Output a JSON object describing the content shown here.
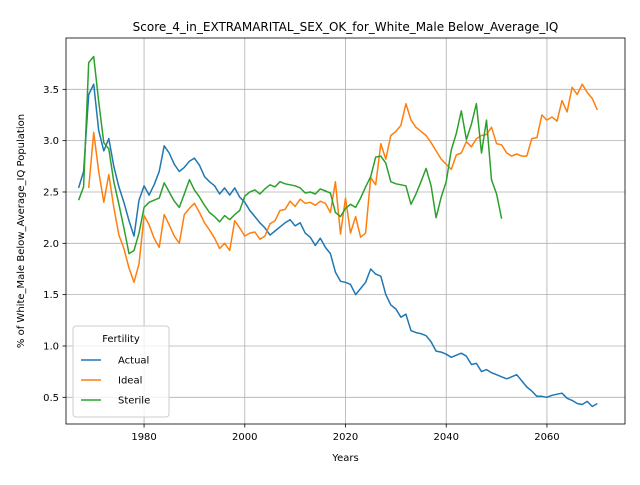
{
  "chart_data": {
    "type": "line",
    "title": "Score_4_in_EXTRAMARITAL_SEX_OK_for_White_Male Below_Average_IQ",
    "xlabel": "Years",
    "ylabel": "% of White_Male Below_Average_IQ Population",
    "xlim": [
      1964.5,
      2075.5
    ],
    "ylim": [
      0.24,
      4.0
    ],
    "xticks": [
      1980,
      2000,
      2020,
      2040,
      2060
    ],
    "yticks": [
      0.5,
      1.0,
      1.5,
      2.0,
      2.5,
      3.0,
      3.5
    ],
    "grid": true,
    "legend": {
      "title": "Fertility",
      "placement": "lower-left"
    },
    "series": [
      {
        "name": "Actual",
        "color": "#1f77b4",
        "x": [
          1967,
          1968,
          1969,
          1970,
          1971,
          1972,
          1973,
          1974,
          1975,
          1976,
          1977,
          1978,
          1979,
          1980,
          1981,
          1982,
          1983,
          1984,
          1985,
          1986,
          1987,
          1988,
          1989,
          1990,
          1991,
          1992,
          1993,
          1994,
          1995,
          1996,
          1997,
          1998,
          1999,
          2000,
          2001,
          2002,
          2003,
          2004,
          2005,
          2006,
          2007,
          2008,
          2009,
          2010,
          2011,
          2012,
          2013,
          2014,
          2015,
          2016,
          2017,
          2018,
          2019,
          2020,
          2021,
          2022,
          2023,
          2024,
          2025,
          2026,
          2027,
          2028,
          2029,
          2030,
          2031,
          2032,
          2033,
          2034,
          2035,
          2036,
          2037,
          2038,
          2039,
          2040,
          2041,
          2042,
          2043,
          2044,
          2045,
          2046,
          2047,
          2048,
          2049,
          2050,
          2051,
          2052,
          2053,
          2054,
          2055,
          2056,
          2057,
          2058,
          2059,
          2060,
          2061,
          2062,
          2063,
          2064,
          2065,
          2066,
          2067,
          2068,
          2069,
          2070
        ],
        "y": [
          2.54,
          2.7,
          3.45,
          3.55,
          3.1,
          2.9,
          3.02,
          2.75,
          2.55,
          2.4,
          2.22,
          2.07,
          2.42,
          2.56,
          2.47,
          2.57,
          2.7,
          2.95,
          2.88,
          2.77,
          2.7,
          2.74,
          2.8,
          2.83,
          2.76,
          2.65,
          2.6,
          2.56,
          2.48,
          2.54,
          2.47,
          2.54,
          2.45,
          2.4,
          2.32,
          2.26,
          2.2,
          2.15,
          2.08,
          2.12,
          2.16,
          2.2,
          2.23,
          2.17,
          2.2,
          2.1,
          2.06,
          1.98,
          2.05,
          1.96,
          1.9,
          1.72,
          1.63,
          1.62,
          1.6,
          1.5,
          1.56,
          1.62,
          1.75,
          1.7,
          1.68,
          1.5,
          1.4,
          1.36,
          1.28,
          1.31,
          1.15,
          1.13,
          1.12,
          1.1,
          1.04,
          0.95,
          0.94,
          0.92,
          0.89,
          0.91,
          0.93,
          0.9,
          0.82,
          0.83,
          0.75,
          0.77,
          0.74,
          0.72,
          0.7,
          0.68,
          0.7,
          0.72,
          0.66,
          0.6,
          0.56,
          0.51,
          0.51,
          0.5,
          0.52,
          0.53,
          0.54,
          0.49,
          0.47,
          0.44,
          0.43,
          0.46,
          0.41,
          0.44
        ]
      },
      {
        "name": "Ideal",
        "color": "#ff7f0e",
        "x": [
          1969,
          1970,
          1971,
          1972,
          1973,
          1974,
          1975,
          1976,
          1977,
          1978,
          1979,
          1980,
          1981,
          1982,
          1983,
          1984,
          1985,
          1986,
          1987,
          1988,
          1989,
          1990,
          1991,
          1992,
          1993,
          1994,
          1995,
          1996,
          1997,
          1998,
          1999,
          2000,
          2001,
          2002,
          2003,
          2004,
          2005,
          2006,
          2007,
          2008,
          2009,
          2010,
          2011,
          2012,
          2013,
          2014,
          2015,
          2016,
          2017,
          2018,
          2019,
          2020,
          2021,
          2022,
          2023,
          2024,
          2025,
          2026,
          2027,
          2028,
          2029,
          2030,
          2031,
          2032,
          2033,
          2034,
          2035,
          2036,
          2037,
          2038,
          2039,
          2040,
          2041,
          2042,
          2043,
          2044,
          2045,
          2046,
          2047,
          2048,
          2049,
          2050,
          2051,
          2052,
          2053,
          2054,
          2055,
          2056,
          2057,
          2058,
          2059,
          2060,
          2061,
          2062,
          2063,
          2064,
          2065,
          2066,
          2067,
          2068,
          2069,
          2070
        ],
        "y": [
          2.54,
          3.08,
          2.7,
          2.4,
          2.67,
          2.35,
          2.08,
          1.95,
          1.76,
          1.62,
          1.8,
          2.27,
          2.18,
          2.05,
          1.96,
          2.28,
          2.18,
          2.07,
          2.0,
          2.28,
          2.34,
          2.39,
          2.3,
          2.2,
          2.13,
          2.05,
          1.95,
          2.0,
          1.93,
          2.22,
          2.15,
          2.07,
          2.1,
          2.11,
          2.04,
          2.07,
          2.19,
          2.22,
          2.32,
          2.33,
          2.41,
          2.36,
          2.43,
          2.39,
          2.4,
          2.37,
          2.41,
          2.39,
          2.3,
          2.6,
          2.09,
          2.44,
          2.1,
          2.26,
          2.06,
          2.1,
          2.64,
          2.57,
          2.97,
          2.82,
          3.05,
          3.09,
          3.15,
          3.36,
          3.2,
          3.13,
          3.09,
          3.05,
          2.98,
          2.9,
          2.82,
          2.77,
          2.72,
          2.86,
          2.88,
          2.99,
          2.94,
          3.02,
          3.05,
          3.06,
          3.13,
          2.97,
          2.96,
          2.88,
          2.85,
          2.87,
          2.85,
          2.85,
          3.02,
          3.03,
          3.25,
          3.2,
          3.23,
          3.19,
          3.39,
          3.28,
          3.52,
          3.45,
          3.55,
          3.47,
          3.41,
          3.3
        ]
      },
      {
        "name": "Sterile",
        "color": "#2ca02c",
        "x": [
          1967,
          1968,
          1969,
          1970,
          1971,
          1972,
          1973,
          1974,
          1975,
          1976,
          1977,
          1978,
          1979,
          1980,
          1981,
          1982,
          1983,
          1984,
          1985,
          1986,
          1987,
          1988,
          1989,
          1990,
          1991,
          1992,
          1993,
          1994,
          1995,
          1996,
          1997,
          1998,
          1999,
          2000,
          2001,
          2002,
          2003,
          2004,
          2005,
          2006,
          2007,
          2008,
          2009,
          2010,
          2011,
          2012,
          2013,
          2014,
          2015,
          2016,
          2017,
          2018,
          2019,
          2020,
          2021,
          2022,
          2023,
          2024,
          2025,
          2026,
          2027,
          2028,
          2029,
          2030,
          2031,
          2032,
          2033,
          2034,
          2035,
          2036,
          2037,
          2038,
          2039,
          2040,
          2041,
          2042,
          2043,
          2044,
          2045,
          2046,
          2047,
          2048,
          2049,
          2050,
          2051
        ],
        "y": [
          2.42,
          2.55,
          3.76,
          3.82,
          3.38,
          2.98,
          2.92,
          2.6,
          2.38,
          2.15,
          1.9,
          1.93,
          2.1,
          2.35,
          2.4,
          2.42,
          2.44,
          2.59,
          2.5,
          2.41,
          2.35,
          2.48,
          2.62,
          2.52,
          2.45,
          2.37,
          2.3,
          2.26,
          2.21,
          2.27,
          2.23,
          2.28,
          2.32,
          2.46,
          2.5,
          2.52,
          2.48,
          2.53,
          2.57,
          2.55,
          2.6,
          2.58,
          2.57,
          2.56,
          2.54,
          2.49,
          2.5,
          2.48,
          2.53,
          2.51,
          2.49,
          2.3,
          2.26,
          2.34,
          2.38,
          2.35,
          2.44,
          2.55,
          2.65,
          2.84,
          2.85,
          2.78,
          2.6,
          2.58,
          2.57,
          2.56,
          2.38,
          2.48,
          2.6,
          2.73,
          2.56,
          2.25,
          2.45,
          2.6,
          2.91,
          3.07,
          3.29,
          3.01,
          3.16,
          3.36,
          2.88,
          3.2,
          2.62,
          2.48,
          2.24
        ]
      }
    ]
  }
}
